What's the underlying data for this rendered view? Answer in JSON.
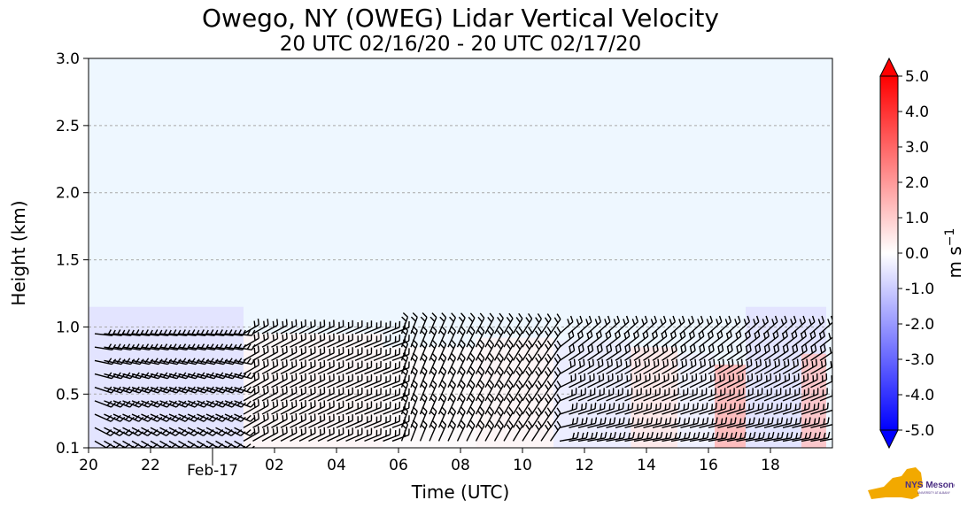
{
  "chart_data": {
    "type": "heatmap",
    "title": "Owego, NY (OWEG) Lidar Vertical Velocity",
    "subtitle": "20 UTC 02/16/20 - 20 UTC 02/17/20",
    "xlabel": "Time (UTC)",
    "ylabel": "Height (km)",
    "xlim": [
      20,
      44
    ],
    "ylim": [
      0.1,
      3.0
    ],
    "x_ticks": [
      {
        "value": 20,
        "label": "20"
      },
      {
        "value": 22,
        "label": "22"
      },
      {
        "value": 26,
        "label": "02"
      },
      {
        "value": 28,
        "label": "04"
      },
      {
        "value": 30,
        "label": "06"
      },
      {
        "value": 32,
        "label": "08"
      },
      {
        "value": 34,
        "label": "10"
      },
      {
        "value": 36,
        "label": "12"
      },
      {
        "value": 38,
        "label": "14"
      },
      {
        "value": 40,
        "label": "16"
      },
      {
        "value": 42,
        "label": "18"
      }
    ],
    "x_date_marker": {
      "value": 24,
      "label": "Feb-17"
    },
    "y_ticks": [
      {
        "value": 0.1,
        "label": "0.1"
      },
      {
        "value": 0.5,
        "label": "0.5"
      },
      {
        "value": 1.0,
        "label": "1.0"
      },
      {
        "value": 1.5,
        "label": "1.5"
      },
      {
        "value": 2.0,
        "label": "2.0"
      },
      {
        "value": 2.5,
        "label": "2.5"
      },
      {
        "value": 3.0,
        "label": "3.0"
      }
    ],
    "grid": "horizontal dashed",
    "colorbar": {
      "label": "m s",
      "label_superscript": "−1",
      "range": [
        -5.0,
        5.0
      ],
      "ticks": [
        "5.0",
        "4.0",
        "3.0",
        "2.0",
        "1.0",
        "0.0",
        "-1.0",
        "-2.0",
        "-3.0",
        "-4.0",
        "-5.0"
      ],
      "colormap": "bwr",
      "extend": "both"
    },
    "background_color": "#eef7ff",
    "velocity_regions": [
      {
        "x_start": 20.0,
        "x_end": 25.0,
        "y_bottom": 0.1,
        "y_top": 1.15,
        "velocity": -0.6
      },
      {
        "x_start": 25.0,
        "x_end": 29.5,
        "y_bottom": 0.1,
        "y_top": 0.95,
        "velocity": 0.2
      },
      {
        "x_start": 29.5,
        "x_end": 32.5,
        "y_bottom": 0.1,
        "y_top": 0.85,
        "velocity": 0.1
      },
      {
        "x_start": 32.5,
        "x_end": 35.0,
        "y_bottom": 0.1,
        "y_top": 0.92,
        "velocity": 0.2
      },
      {
        "x_start": 35.0,
        "x_end": 37.5,
        "y_bottom": 0.1,
        "y_top": 0.9,
        "velocity": -0.4
      },
      {
        "x_start": 37.5,
        "x_end": 39.0,
        "y_bottom": 0.1,
        "y_top": 0.85,
        "velocity": 0.5
      },
      {
        "x_start": 39.0,
        "x_end": 40.2,
        "y_bottom": 0.1,
        "y_top": 0.8,
        "velocity": -0.3
      },
      {
        "x_start": 40.2,
        "x_end": 41.2,
        "y_bottom": 0.1,
        "y_top": 0.72,
        "velocity": 1.5
      },
      {
        "x_start": 41.2,
        "x_end": 43.8,
        "y_bottom": 0.1,
        "y_top": 1.15,
        "velocity": -0.6
      },
      {
        "x_start": 43.0,
        "x_end": 43.8,
        "y_bottom": 0.1,
        "y_top": 0.8,
        "velocity": 1.2
      }
    ],
    "wind_barbs": {
      "x_start": 20.2,
      "x_end": 43.6,
      "x_step": 0.3,
      "y_levels": [
        0.15,
        0.25,
        0.35,
        0.45,
        0.55,
        0.65,
        0.75,
        0.85,
        0.95
      ]
    }
  },
  "logo": {
    "text": "NYS Mesonet",
    "subtext": "UNIVERSITY AT ALBANY",
    "color": "#f2a900",
    "accent": "#4b2e83"
  }
}
